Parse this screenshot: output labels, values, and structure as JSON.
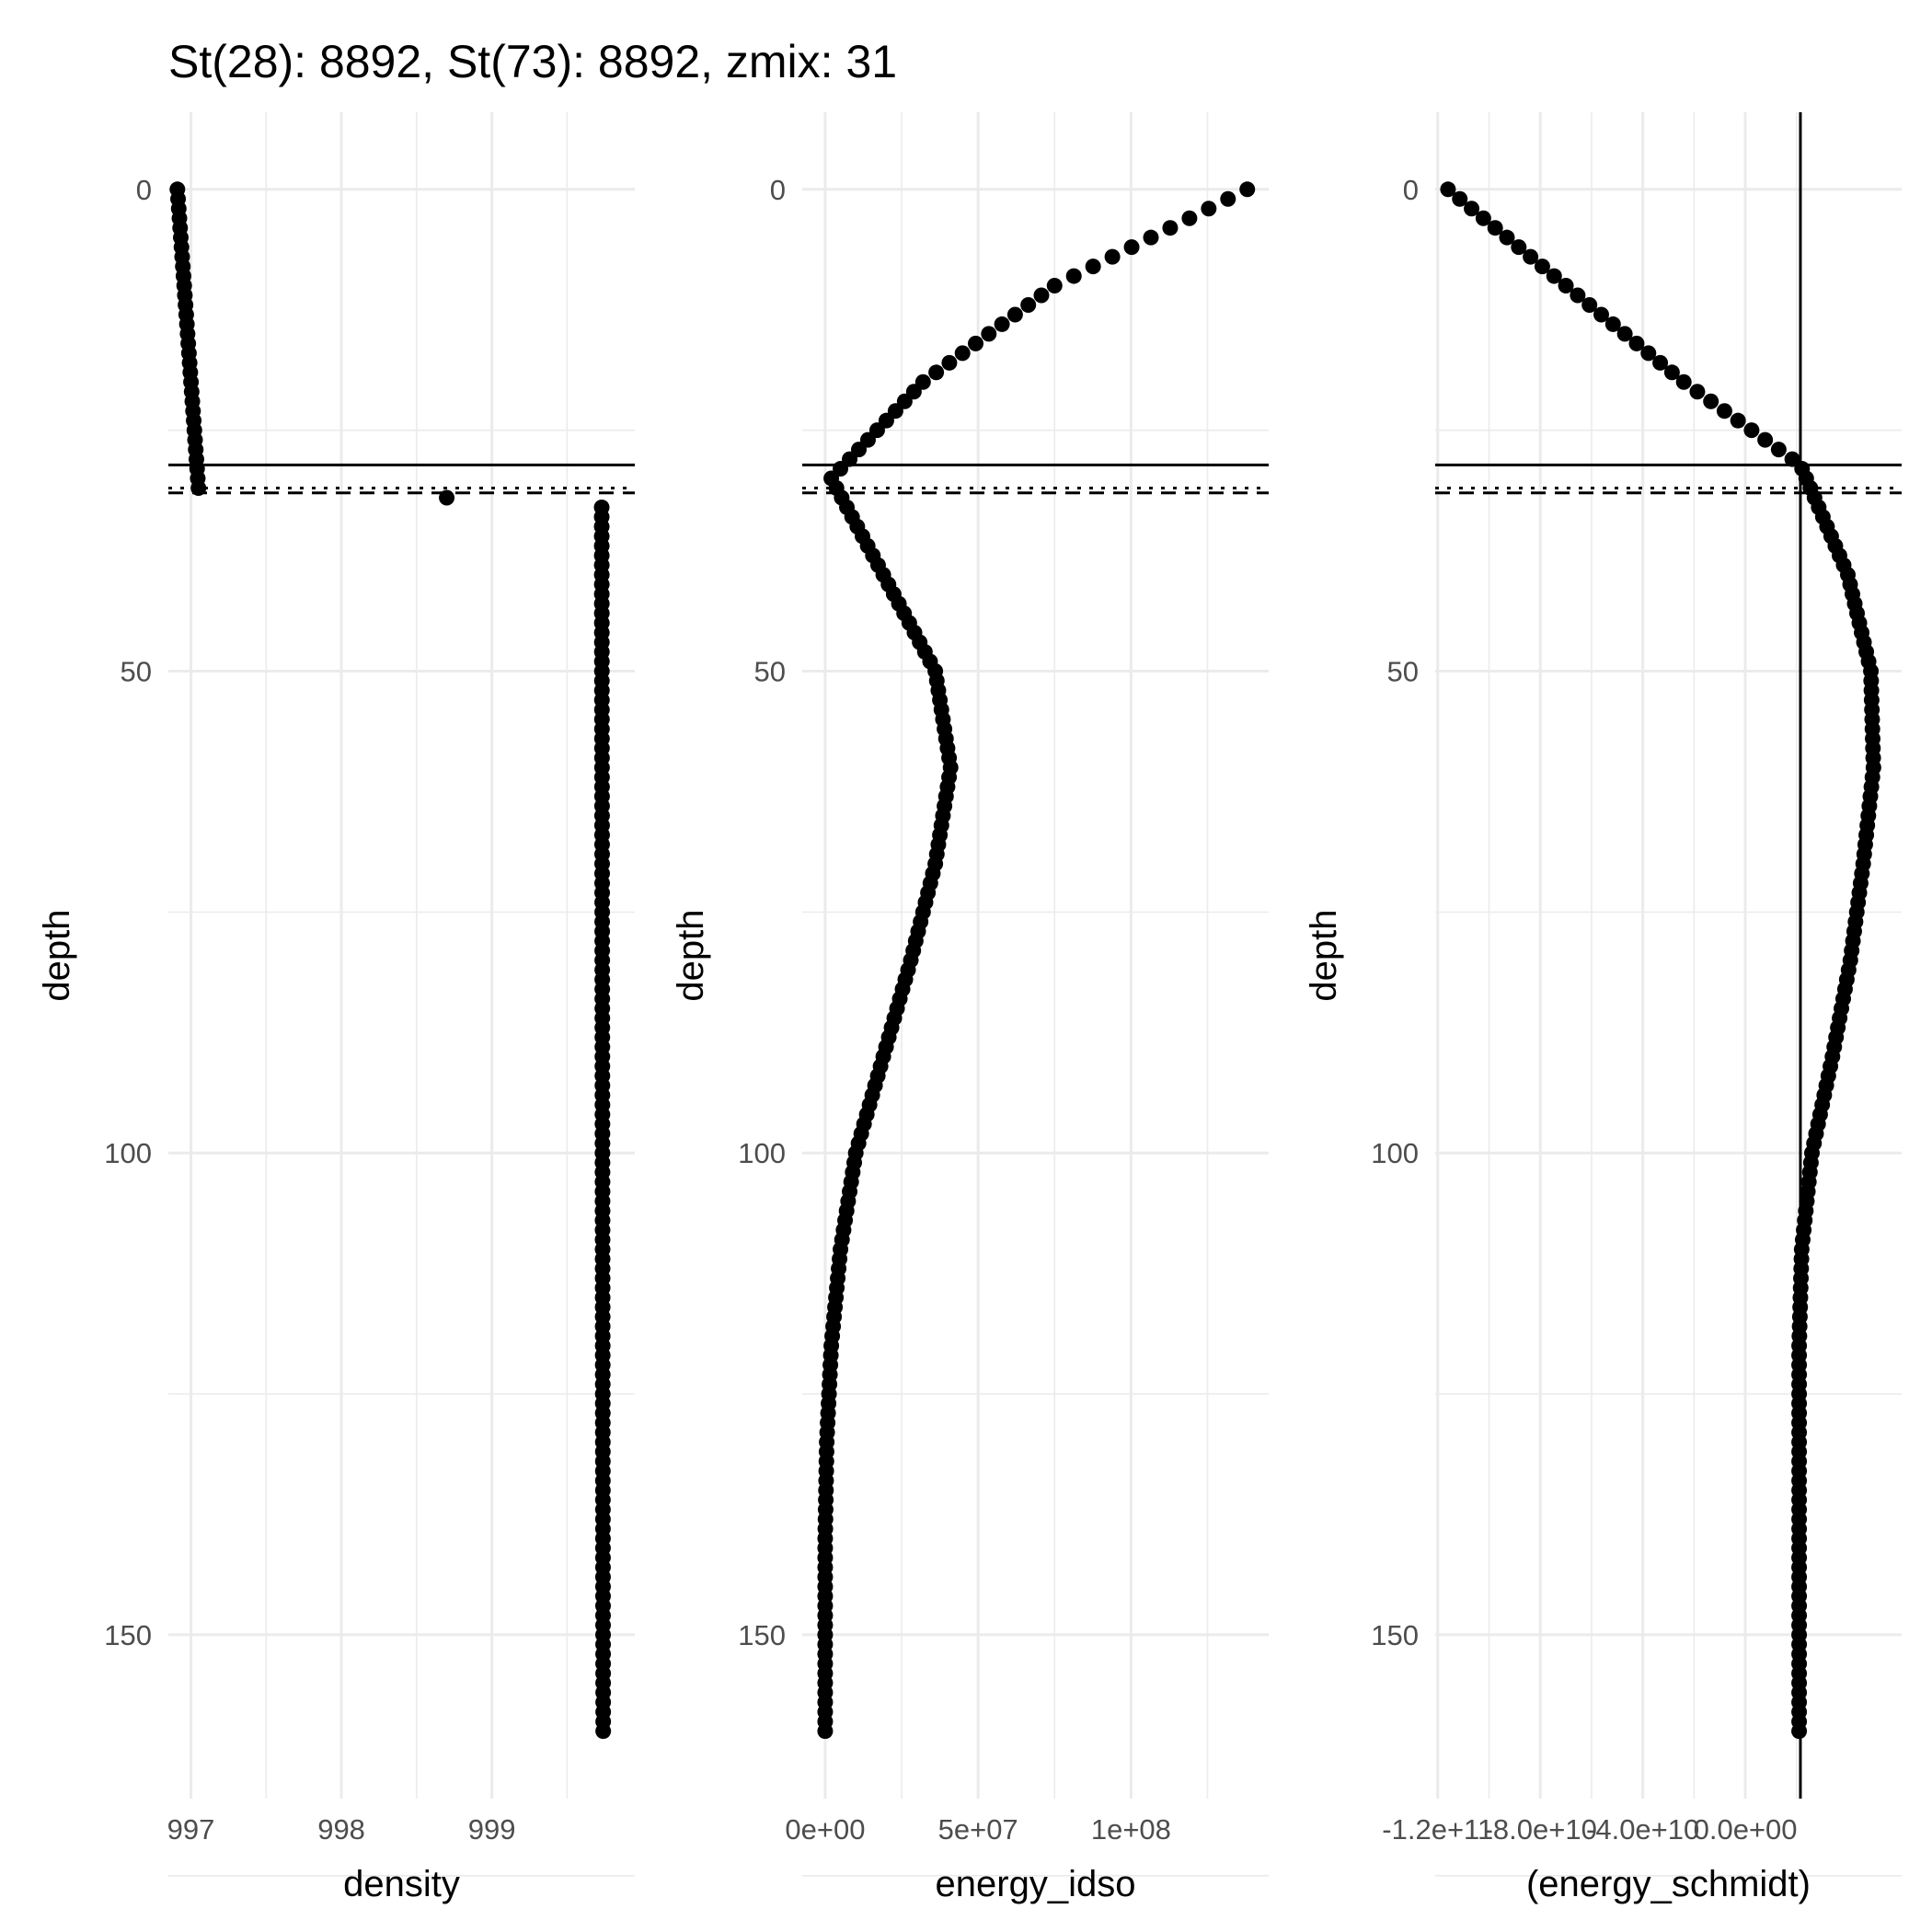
{
  "title": "St(28): 8892, St(73): 8892, zmix: 31",
  "chart_data": [
    {
      "type": "scatter",
      "panel": "left",
      "xlabel": "density",
      "ylabel": "depth",
      "x_ticks": [
        {
          "value": 997,
          "label": "997"
        },
        {
          "value": 998,
          "label": "998"
        },
        {
          "value": 999,
          "label": "999"
        }
      ],
      "x_range": [
        996.85,
        999.95
      ],
      "y_ticks": [
        {
          "value": 0,
          "label": "0"
        },
        {
          "value": 50,
          "label": "50"
        },
        {
          "value": 100,
          "label": "100"
        },
        {
          "value": 150,
          "label": "150"
        }
      ],
      "y_range": [
        -8,
        167
      ],
      "y_reversed": true,
      "hlines": [
        {
          "depth": 28.6,
          "linetype": "solid"
        },
        {
          "depth": 31.0,
          "linetype": "dotted"
        },
        {
          "depth": 31.5,
          "linetype": "dashed"
        }
      ],
      "vlines": [],
      "series": [
        {
          "x_profile": [
            [
              0,
              996.91
            ],
            [
              31,
              997.05
            ]
          ],
          "depth_range": [
            0,
            31
          ]
        },
        {
          "x_profile": [
            [
              32,
              998.7
            ]
          ],
          "depth_range": [
            32,
            32
          ]
        },
        {
          "x_profile": [
            [
              33,
              999.73
            ],
            [
              160,
              999.74
            ]
          ],
          "depth_range": [
            33,
            160
          ]
        }
      ],
      "grid": true
    },
    {
      "type": "scatter",
      "panel": "middle",
      "xlabel": "energy_idso",
      "ylabel": "depth",
      "x_ticks": [
        {
          "value": 0,
          "label": "0e+00"
        },
        {
          "value": 50000000,
          "label": "5e+07"
        },
        {
          "value": 100000000,
          "label": "1e+08"
        }
      ],
      "x_range": [
        -7500000,
        145000000
      ],
      "y_ticks": [
        {
          "value": 0,
          "label": "0"
        },
        {
          "value": 50,
          "label": "50"
        },
        {
          "value": 100,
          "label": "100"
        },
        {
          "value": 150,
          "label": "150"
        }
      ],
      "y_range": [
        -8,
        167
      ],
      "y_reversed": true,
      "hlines": [
        {
          "depth": 28.6,
          "linetype": "solid"
        },
        {
          "depth": 31.0,
          "linetype": "dotted"
        },
        {
          "depth": 31.5,
          "linetype": "dashed"
        }
      ],
      "vlines": [],
      "series": [
        {
          "x_profile": [
            [
              0,
              138000000
            ],
            [
              10,
              75000000
            ],
            [
              20,
              32000000
            ],
            [
              30,
              2000000
            ],
            [
              40,
              19000000
            ],
            [
              50,
              36000000
            ],
            [
              60,
              41000000
            ],
            [
              70,
              36000000
            ],
            [
              80,
              28000000
            ],
            [
              90,
              19000000
            ],
            [
              100,
              10000000
            ],
            [
              110,
              5000000
            ],
            [
              120,
              2000000
            ],
            [
              130,
              500000
            ],
            [
              140,
              0
            ],
            [
              160,
              0
            ]
          ],
          "depth_range": [
            0,
            160
          ]
        }
      ],
      "grid": true
    },
    {
      "type": "scatter",
      "panel": "right",
      "xlabel": "(energy_schmidt)",
      "ylabel": "depth",
      "x_ticks": [
        {
          "value": -120000000000,
          "label": "-1.2e+11"
        },
        {
          "value": -80000000000,
          "label": "-8.0e+10"
        },
        {
          "value": -40000000000,
          "label": "-4.0e+10"
        },
        {
          "value": 0,
          "label": "0.0e+00"
        }
      ],
      "x_range": [
        -121000000000,
        61000000000
      ],
      "y_ticks": [
        {
          "value": 0,
          "label": "0"
        },
        {
          "value": 50,
          "label": "50"
        },
        {
          "value": 100,
          "label": "100"
        },
        {
          "value": 150,
          "label": "150"
        }
      ],
      "y_range": [
        -8,
        167
      ],
      "y_reversed": true,
      "hlines": [
        {
          "depth": 28.6,
          "linetype": "solid"
        },
        {
          "depth": 31.0,
          "linetype": "dotted"
        },
        {
          "depth": 31.5,
          "linetype": "dashed"
        }
      ],
      "vlines": [
        {
          "x": 21500000000,
          "linetype": "solid"
        }
      ],
      "series": [
        {
          "x_profile": [
            [
              0,
              -116000000000
            ],
            [
              10,
              -70000000000
            ],
            [
              20,
              -24000000000
            ],
            [
              28.6,
              21500000000
            ],
            [
              40,
              40000000000
            ],
            [
              50,
              49000000000
            ],
            [
              60,
              50000000000
            ],
            [
              70,
              46000000000
            ],
            [
              80,
              41000000000
            ],
            [
              90,
              34000000000
            ],
            [
              100,
              26000000000
            ],
            [
              110,
              22000000000
            ],
            [
              120,
              21000000000
            ],
            [
              140,
              21000000000
            ],
            [
              160,
              21000000000
            ]
          ],
          "depth_range": [
            0,
            160
          ]
        }
      ],
      "grid": true
    }
  ]
}
